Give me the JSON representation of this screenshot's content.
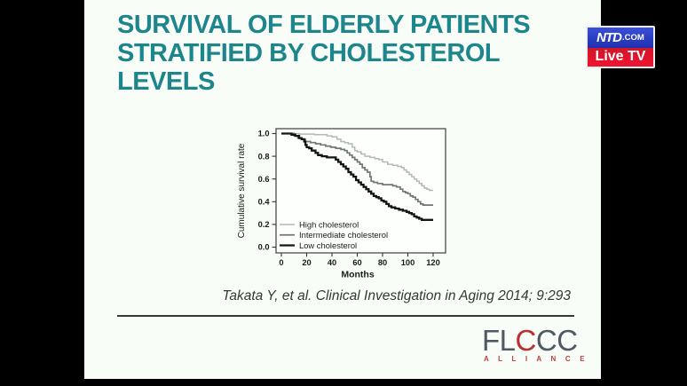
{
  "title": {
    "line1": "SURVIVAL OF ELDERLY PATIENTS",
    "line2": "STRATIFIED BY CHOLESTEROL LEVELS",
    "color": "#1d868d"
  },
  "broadcaster_badge": {
    "name": "NTD",
    "suffix": ".COM",
    "live_label": "Live TV",
    "blue": "#2438c8",
    "red": "#e01428"
  },
  "citation": {
    "text": "Takata Y, et al. Clinical Investigation in Aging 2014; 9:293"
  },
  "logo": {
    "letters": [
      {
        "ch": "F",
        "red": false
      },
      {
        "ch": "L",
        "red": false
      },
      {
        "ch": "C",
        "red": true
      },
      {
        "ch": "C",
        "red": false
      },
      {
        "ch": "C",
        "red": false
      }
    ],
    "subtitle": "A L L I A N C E",
    "slate": "#4e5a63",
    "red": "#bb2f33"
  },
  "chart_data": {
    "type": "line",
    "step": true,
    "title": "",
    "xlabel": "Months",
    "ylabel": "Cumulative survival rate",
    "xlim": [
      0,
      120
    ],
    "ylim": [
      0.0,
      1.0
    ],
    "xticks": [
      0,
      20,
      40,
      60,
      80,
      100,
      120
    ],
    "yticks": [
      1.0,
      0.8,
      0.6,
      0.4,
      0.2,
      0.0
    ],
    "grid": false,
    "legend_position": "lower-left",
    "series": [
      {
        "name": "High cholesterol",
        "color": "#b3b9b3",
        "width": 1.5,
        "points": [
          [
            0,
            1.0
          ],
          [
            12,
            1.0
          ],
          [
            14,
            0.995
          ],
          [
            26,
            0.99
          ],
          [
            36,
            0.98
          ],
          [
            40,
            0.97
          ],
          [
            44,
            0.95
          ],
          [
            47,
            0.93
          ],
          [
            50,
            0.92
          ],
          [
            53,
            0.91
          ],
          [
            56,
            0.88
          ],
          [
            58,
            0.85
          ],
          [
            60,
            0.84
          ],
          [
            63,
            0.82
          ],
          [
            66,
            0.8
          ],
          [
            70,
            0.79
          ],
          [
            74,
            0.78
          ],
          [
            77,
            0.77
          ],
          [
            80,
            0.75
          ],
          [
            84,
            0.73
          ],
          [
            88,
            0.72
          ],
          [
            92,
            0.71
          ],
          [
            95,
            0.7
          ],
          [
            97,
            0.68
          ],
          [
            99,
            0.66
          ],
          [
            101,
            0.64
          ],
          [
            103,
            0.62
          ],
          [
            105,
            0.6
          ],
          [
            107,
            0.58
          ],
          [
            109,
            0.56
          ],
          [
            111,
            0.54
          ],
          [
            113,
            0.52
          ],
          [
            115,
            0.51
          ],
          [
            117,
            0.5
          ],
          [
            120,
            0.5
          ]
        ]
      },
      {
        "name": "Intermediate cholesterol",
        "color": "#717771",
        "width": 1.7,
        "points": [
          [
            0,
            1.0
          ],
          [
            8,
            1.0
          ],
          [
            10,
            0.98
          ],
          [
            13,
            0.96
          ],
          [
            16,
            0.95
          ],
          [
            19,
            0.93
          ],
          [
            23,
            0.92
          ],
          [
            27,
            0.91
          ],
          [
            31,
            0.9
          ],
          [
            35,
            0.89
          ],
          [
            39,
            0.88
          ],
          [
            43,
            0.87
          ],
          [
            47,
            0.86
          ],
          [
            50,
            0.85
          ],
          [
            52,
            0.83
          ],
          [
            54,
            0.81
          ],
          [
            56,
            0.79
          ],
          [
            58,
            0.77
          ],
          [
            60,
            0.75
          ],
          [
            62,
            0.73
          ],
          [
            64,
            0.7
          ],
          [
            66,
            0.68
          ],
          [
            68,
            0.66
          ],
          [
            70,
            0.62
          ],
          [
            71,
            0.58
          ],
          [
            73,
            0.57
          ],
          [
            76,
            0.56
          ],
          [
            80,
            0.55
          ],
          [
            85,
            0.55
          ],
          [
            88,
            0.54
          ],
          [
            91,
            0.53
          ],
          [
            94,
            0.51
          ],
          [
            96,
            0.49
          ],
          [
            98,
            0.48
          ],
          [
            100,
            0.47
          ],
          [
            102,
            0.45
          ],
          [
            104,
            0.44
          ],
          [
            106,
            0.42
          ],
          [
            108,
            0.4
          ],
          [
            110,
            0.38
          ],
          [
            112,
            0.37
          ],
          [
            120,
            0.37
          ]
        ]
      },
      {
        "name": "Low cholesterol",
        "color": "#141414",
        "width": 2.3,
        "points": [
          [
            0,
            1.0
          ],
          [
            6,
            1.0
          ],
          [
            8,
            0.99
          ],
          [
            11,
            0.98
          ],
          [
            14,
            0.96
          ],
          [
            16,
            0.95
          ],
          [
            18,
            0.93
          ],
          [
            19,
            0.9
          ],
          [
            20,
            0.88
          ],
          [
            22,
            0.87
          ],
          [
            24,
            0.85
          ],
          [
            27,
            0.83
          ],
          [
            29,
            0.81
          ],
          [
            32,
            0.8
          ],
          [
            36,
            0.79
          ],
          [
            41,
            0.79
          ],
          [
            43,
            0.77
          ],
          [
            45,
            0.75
          ],
          [
            47,
            0.73
          ],
          [
            49,
            0.71
          ],
          [
            51,
            0.69
          ],
          [
            53,
            0.66
          ],
          [
            55,
            0.64
          ],
          [
            57,
            0.62
          ],
          [
            59,
            0.59
          ],
          [
            61,
            0.57
          ],
          [
            63,
            0.55
          ],
          [
            65,
            0.53
          ],
          [
            67,
            0.51
          ],
          [
            69,
            0.49
          ],
          [
            71,
            0.47
          ],
          [
            73,
            0.45
          ],
          [
            75,
            0.44
          ],
          [
            77,
            0.43
          ],
          [
            79,
            0.41
          ],
          [
            81,
            0.4
          ],
          [
            83,
            0.38
          ],
          [
            85,
            0.36
          ],
          [
            87,
            0.35
          ],
          [
            90,
            0.34
          ],
          [
            93,
            0.33
          ],
          [
            96,
            0.32
          ],
          [
            99,
            0.31
          ],
          [
            101,
            0.3
          ],
          [
            103,
            0.29
          ],
          [
            105,
            0.27
          ],
          [
            107,
            0.26
          ],
          [
            109,
            0.25
          ],
          [
            111,
            0.24
          ],
          [
            120,
            0.24
          ]
        ]
      }
    ]
  }
}
